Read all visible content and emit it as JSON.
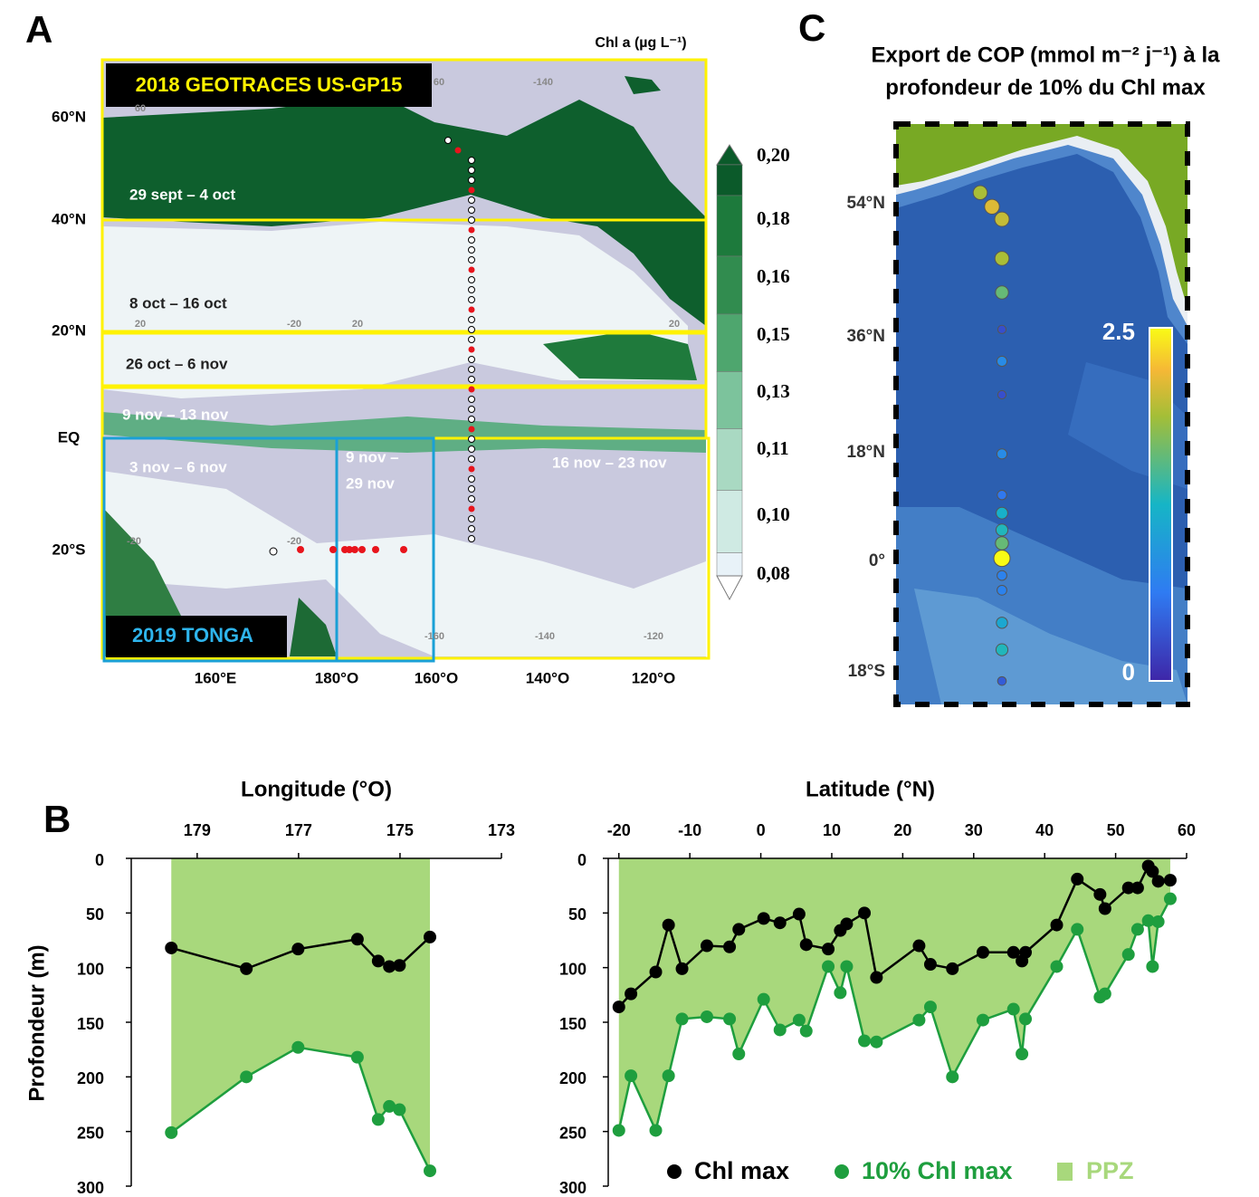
{
  "panel_labels": [
    "A",
    "B",
    "C"
  ],
  "map_a": {
    "colorbar_title": "Chl a (µg L⁻¹)",
    "colorbar_labels": [
      "0,20",
      "0,18",
      "0,16",
      "0,15",
      "0,13",
      "0,11",
      "0,10",
      "0,08"
    ],
    "colorbar_colors": [
      "#0b5a2a",
      "#1d7a3c",
      "#318c4f",
      "#4ea66e",
      "#7cc39c",
      "#a9d9c2",
      "#cfeae3",
      "#e8f2f8"
    ],
    "campaigns": [
      "2018 GEOTRACES US-GP15",
      "2019 TONGA"
    ],
    "periods": [
      "29 sept – 4 oct",
      "8 oct – 16 oct",
      "26 oct – 6 nov",
      "9 nov – 13 nov",
      "3 nov – 6 nov",
      "9 nov –",
      "29 nov",
      "16 nov – 23 nov"
    ],
    "lat_labels": [
      "60°N",
      "40°N",
      "20°N",
      "EQ",
      "20°S"
    ],
    "lon_labels": [
      "160°E",
      "180°O",
      "160°O",
      "140°O",
      "120°O"
    ],
    "grid_labels": [
      "60",
      "-140",
      "60",
      "20",
      "-20",
      "20",
      "20",
      "-20",
      "-20",
      "-160",
      "-140",
      "-120"
    ]
  },
  "map_c": {
    "title": [
      "Export de COP (mmol m⁻² j⁻¹) à la",
      "profondeur de 10% du Chl max"
    ],
    "lat_ticks": [
      {
        "value": 54,
        "label": "54°N"
      },
      {
        "value": 36,
        "label": "36°N"
      },
      {
        "value": 18,
        "label": "18°N"
      },
      {
        "value": 0,
        "label": "0°"
      },
      {
        "value": -18,
        "label": "18°S"
      }
    ],
    "clim": [
      0,
      2.5
    ],
    "cticks": [
      2.5,
      0
    ],
    "lat": [
      55.5,
      53.6,
      51.9,
      46.6,
      42,
      37,
      32.2,
      27,
      17.8,
      11,
      8,
      5.2,
      3,
      0.5,
      -2.3,
      -4.7,
      -10,
      -14.4,
      -19.5
    ],
    "values": [
      1.9,
      2.1,
      2.0,
      1.9,
      1.6,
      0.3,
      0.8,
      0.3,
      0.8,
      0.6,
      1.2,
      1.3,
      1.6,
      2.5,
      0.7,
      0.7,
      1.1,
      1.3,
      0.4
    ]
  },
  "chart_data": [
    {
      "type": "line",
      "xlabel": "Longitude (°O)",
      "ylabel": "Profondeur (m)",
      "x": [
        179.51,
        178.03,
        177.01,
        175.84,
        175.43,
        175.21,
        175.01,
        174.41
      ],
      "xlim": [
        180.3,
        173
      ],
      "xticks": [
        179,
        177,
        175,
        173
      ],
      "ylim": [
        300,
        0
      ],
      "yticks": [
        0,
        50,
        100,
        150,
        200,
        250,
        300
      ],
      "area_color": "#a8d87c",
      "series": [
        {
          "color": "#000000",
          "values": [
            82,
            101,
            83,
            74,
            94,
            99,
            98,
            72
          ]
        },
        {
          "color": "#1e9e3e",
          "values": [
            251,
            200,
            173,
            182,
            239,
            227,
            230,
            286
          ]
        }
      ]
    },
    {
      "type": "line",
      "xlabel": "Latitude (°N)",
      "x": [
        -20,
        -18.3,
        -14.8,
        -13,
        -11.1,
        -7.6,
        -4.4,
        -3.1,
        0.4,
        2.7,
        5.4,
        6.4,
        9.5,
        11.2,
        12.1,
        14.6,
        16.3,
        22.3,
        23.9,
        27,
        31.3,
        35.6,
        36.8,
        37.3,
        41.7,
        44.6,
        47.8,
        48.5,
        51.8,
        53.1,
        54.6,
        55.2,
        56,
        57.7
      ],
      "xlim": [
        -21.5,
        60
      ],
      "xticks": [
        -20,
        -10,
        0,
        10,
        20,
        30,
        40,
        50,
        60
      ],
      "ylim": [
        300,
        0
      ],
      "yticks": [
        0,
        50,
        100,
        150,
        200,
        250,
        300
      ],
      "area_color": "#a8d87c",
      "area_label": "PPZ",
      "series": [
        {
          "name": "Chl max",
          "color": "#000000",
          "values": [
            136,
            124,
            104,
            61,
            101,
            80,
            81,
            65,
            55,
            59,
            51,
            79,
            83,
            66,
            60,
            50,
            109,
            80,
            97,
            101,
            86,
            86,
            94,
            86,
            61,
            19,
            33,
            46,
            27,
            27,
            7,
            12,
            21,
            20
          ]
        },
        {
          "name": "10% Chl max",
          "color": "#1e9e3e",
          "values": [
            249,
            199,
            249,
            199,
            147,
            145,
            147,
            179,
            129,
            157,
            148,
            158,
            99,
            123,
            99,
            167,
            168,
            148,
            136,
            200,
            148,
            138,
            179,
            147,
            99,
            65,
            127,
            124,
            88,
            65,
            57,
            99,
            58,
            37
          ]
        }
      ]
    }
  ]
}
